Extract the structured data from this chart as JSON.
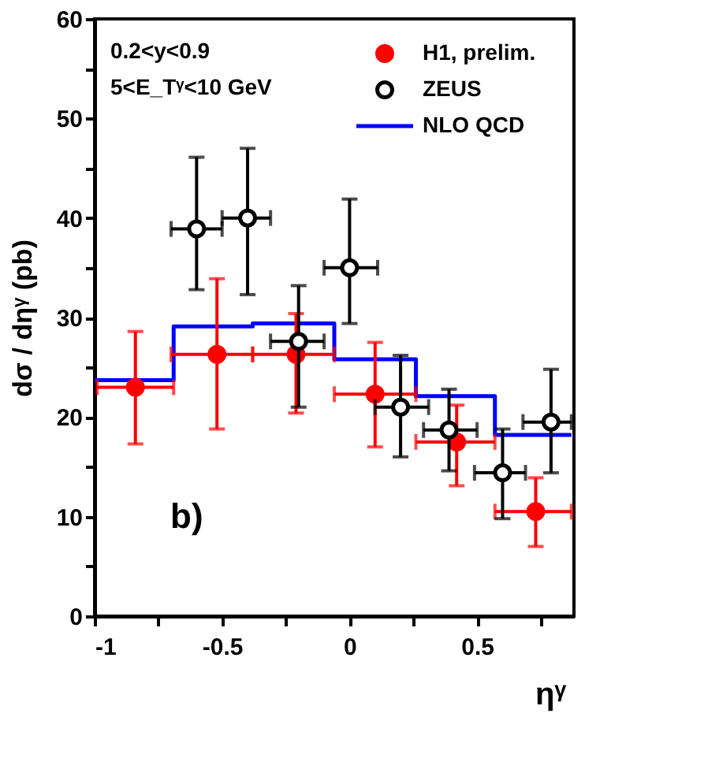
{
  "chart_data": {
    "type": "scatter",
    "xlabel": "ηᵞ",
    "ylabel": "dσ / dηᵞ (pb)",
    "annotations": [
      "0.2<y<0.9",
      "5<E_Tᵞ<10 GeV",
      "b)"
    ],
    "series": [
      {
        "name": "H1, prelim.",
        "type": "scatter",
        "marker": "circle",
        "color": "#ff0000",
        "x": [
          -0.84,
          -0.52,
          -0.21,
          0.1,
          0.42,
          0.73
        ],
        "values": [
          23.0,
          26.3,
          26.3,
          22.3,
          17.5,
          10.5
        ],
        "errors": [
          [
            17.3,
            28.6
          ],
          [
            18.8,
            33.9
          ],
          [
            20.4,
            30.4
          ],
          [
            17.0,
            27.5
          ],
          [
            13.1,
            21.2
          ],
          [
            7.0,
            13.9
          ]
        ],
        "xerrors": [
          [
            -0.99,
            -0.69
          ],
          [
            -0.7,
            -0.38
          ],
          [
            -0.38,
            -0.06
          ],
          [
            -0.06,
            0.26
          ],
          [
            0.26,
            0.57
          ],
          [
            0.57,
            0.87
          ]
        ]
      },
      {
        "name": "ZEUS",
        "type": "scatter",
        "marker": "circle",
        "color": "#000000",
        "x": [
          -0.6,
          -0.4,
          -0.2,
          0.0,
          0.2,
          0.39,
          0.6,
          0.79
        ],
        "values": [
          38.9,
          40.0,
          27.6,
          35.0,
          21.0,
          18.7,
          14.4,
          19.5
        ],
        "errors": [
          [
            32.8,
            46.1
          ],
          [
            32.3,
            47.0
          ],
          [
            21.0,
            33.2
          ],
          [
            29.4,
            41.9
          ],
          [
            16.0,
            26.2
          ],
          [
            14.6,
            22.8
          ],
          [
            9.8,
            18.8
          ],
          [
            14.4,
            24.8
          ]
        ],
        "xerrors": [
          [
            -0.7,
            -0.5
          ],
          [
            -0.5,
            -0.31
          ],
          [
            -0.31,
            -0.1
          ],
          [
            -0.1,
            0.11
          ],
          [
            0.1,
            0.31
          ],
          [
            0.29,
            0.5
          ],
          [
            0.49,
            0.69
          ],
          [
            0.68,
            0.87
          ]
        ]
      },
      {
        "name": "NLO QCD",
        "type": "step",
        "marker": "none",
        "line_style": "solid",
        "color": "#0000ff",
        "x": [
          -1,
          -0.69,
          -0.38,
          -0.06,
          0.26,
          0.57,
          0.87
        ],
        "values": [
          23.7,
          29.1,
          29.4,
          25.8,
          22.1,
          18.2,
          18.2
        ]
      }
    ],
    "xlim": [
      -1,
      0.88
    ],
    "xticks": [
      -1,
      {
        "value": -0.75,
        "label": null
      },
      -0.5,
      {
        "value": -0.25,
        "label": null
      },
      0,
      {
        "value": 0.25,
        "label": null
      },
      0.5,
      {
        "value": 0.75,
        "label": null
      }
    ],
    "ylim": [
      0,
      60
    ],
    "yticks": [
      0,
      {
        "value": 5,
        "label": null
      },
      10,
      {
        "value": 15,
        "label": null
      },
      20,
      {
        "value": 25,
        "label": null
      },
      30,
      {
        "value": 35,
        "label": null
      },
      40,
      {
        "value": 45,
        "label": null
      },
      50,
      {
        "value": 55,
        "label": null
      },
      60
    ],
    "grid": false,
    "legend": "top right"
  }
}
